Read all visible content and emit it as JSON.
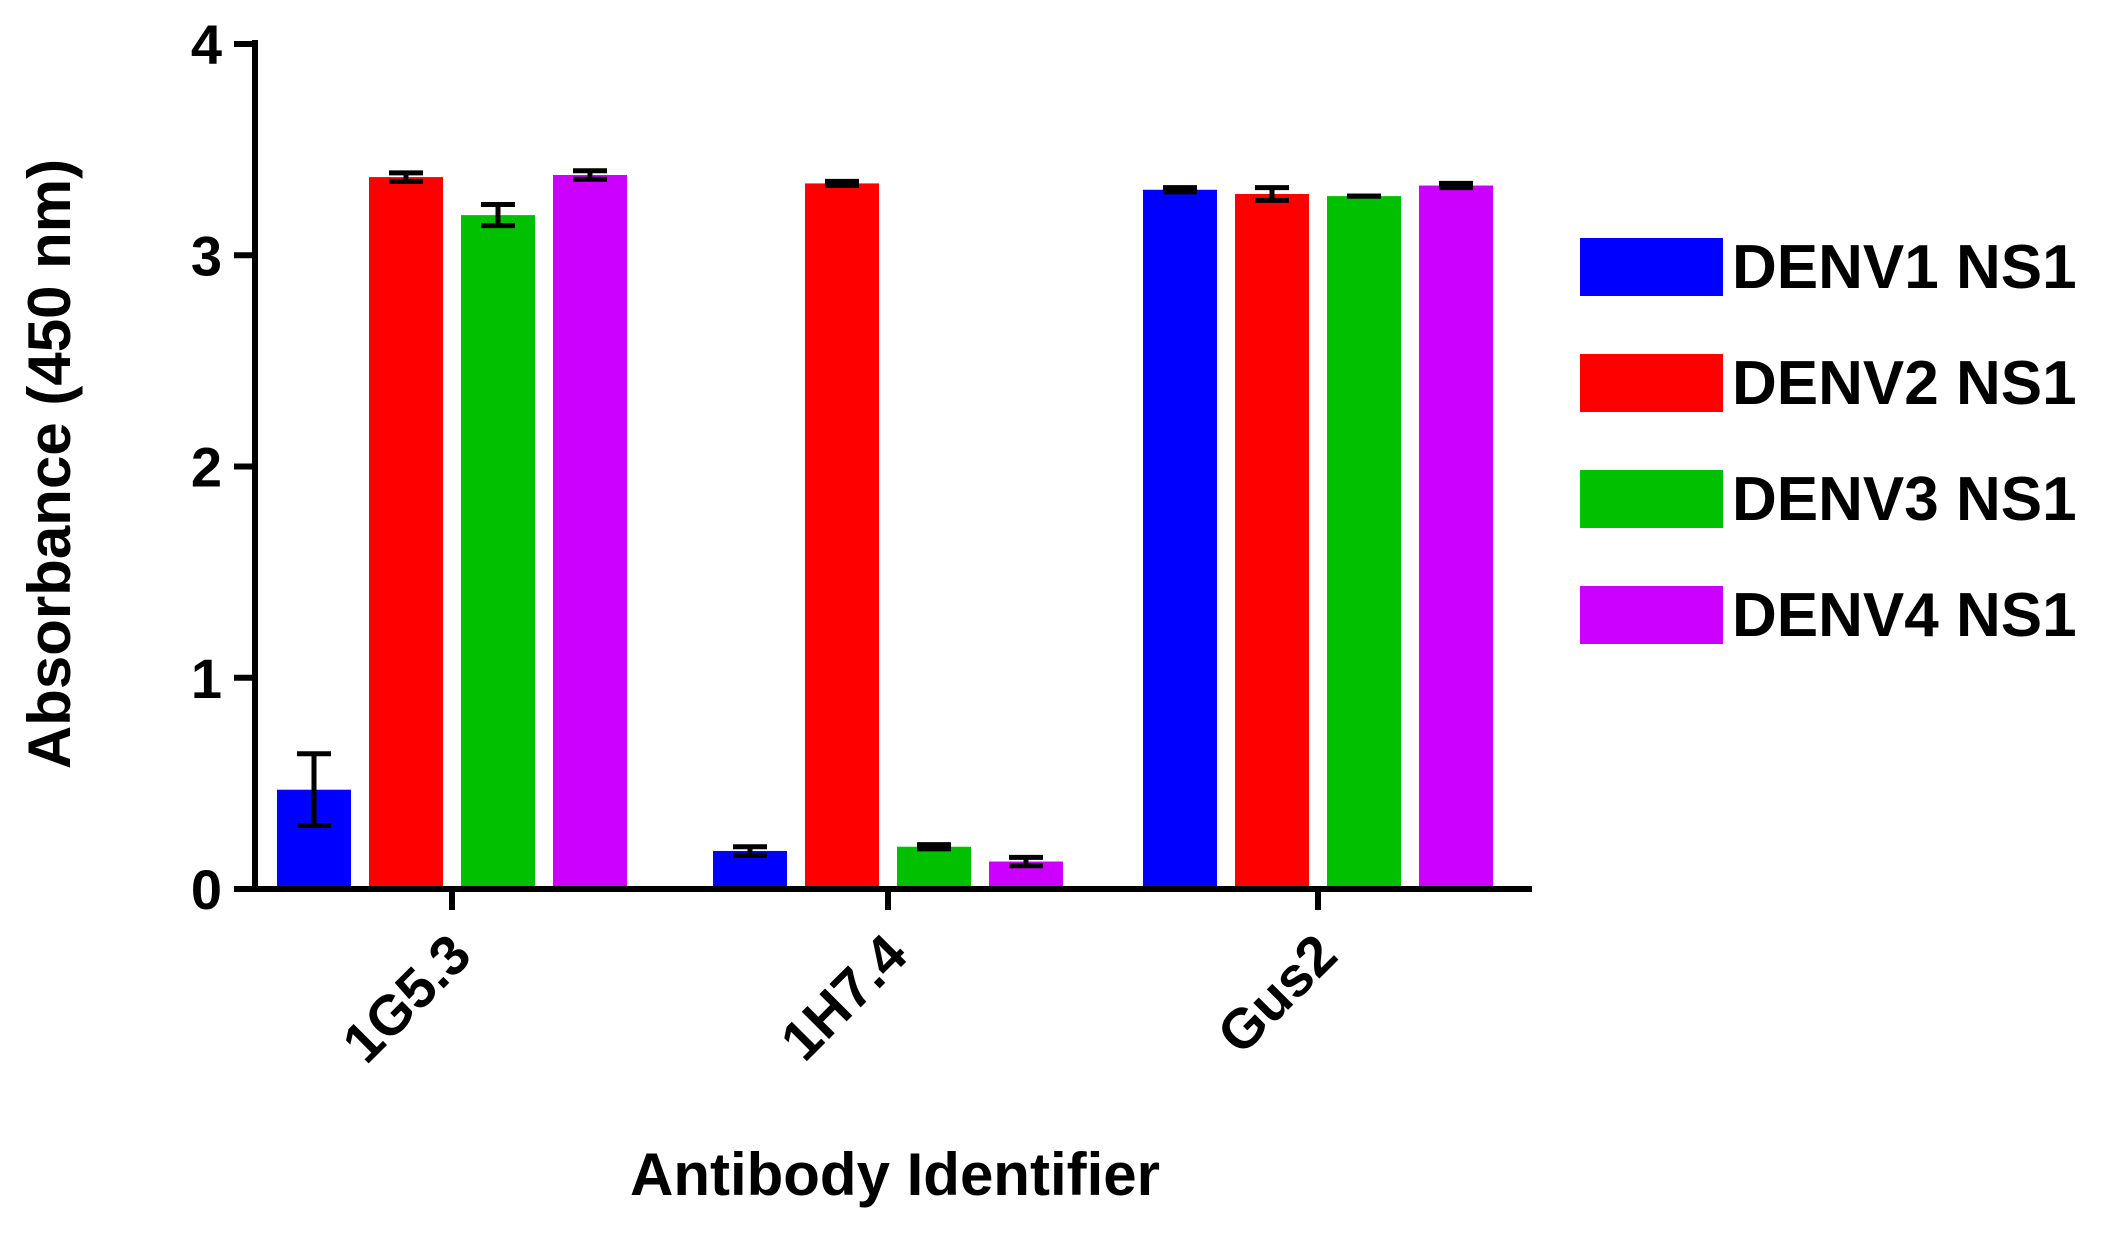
{
  "chart_data": {
    "type": "bar",
    "title": "",
    "xlabel": "Antibody Identifier",
    "ylabel": "Absorbance (450 nm)",
    "ylim": [
      0,
      4
    ],
    "yticks": [
      0,
      1,
      2,
      3,
      4
    ],
    "grid": false,
    "legend_position": "right",
    "categories": [
      "1G5.3",
      "1H7.4",
      "Gus2"
    ],
    "series": [
      {
        "name": "DENV1 NS1",
        "color": "#0000ff",
        "values": [
          0.47,
          0.18,
          3.31
        ],
        "errors": [
          0.17,
          0.02,
          0.01
        ]
      },
      {
        "name": "DENV2 NS1",
        "color": "#ff0000",
        "values": [
          3.37,
          3.34,
          3.29
        ],
        "errors": [
          0.02,
          0.01,
          0.03
        ]
      },
      {
        "name": "DENV3 NS1",
        "color": "#00c000",
        "values": [
          3.19,
          0.2,
          3.28
        ],
        "errors": [
          0.05,
          0.01,
          0.0
        ]
      },
      {
        "name": "DENV4 NS1",
        "color": "#cc00ff",
        "values": [
          3.38,
          0.13,
          3.33
        ],
        "errors": [
          0.02,
          0.02,
          0.01
        ]
      }
    ]
  }
}
